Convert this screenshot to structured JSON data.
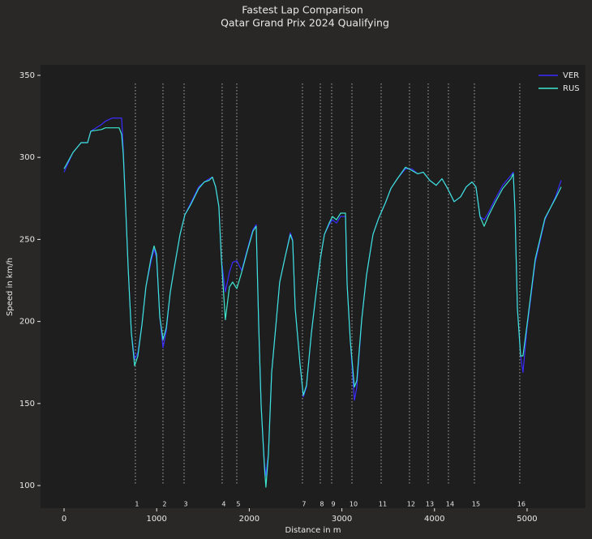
{
  "chart_data": {
    "type": "line",
    "title": "Fastest Lap Comparison",
    "subtitle": "Qatar Grand Prix 2024 Qualifying",
    "xlabel": "Distance in m",
    "ylabel": "Speed in km/h",
    "x": [
      0,
      96,
      184,
      254,
      289,
      403,
      447,
      522,
      595,
      622,
      639,
      666,
      692,
      727,
      762,
      797,
      841,
      884,
      937,
      972,
      998,
      1033,
      1068,
      1103,
      1147,
      1191,
      1252,
      1305,
      1366,
      1454,
      1515,
      1567,
      1602,
      1637,
      1672,
      1699,
      1742,
      1786,
      1821,
      1865,
      1918,
      1979,
      2040,
      2075,
      2102,
      2128,
      2163,
      2180,
      2207,
      2242,
      2285,
      2329,
      2390,
      2443,
      2469,
      2496,
      2548,
      2583,
      2618,
      2671,
      2723,
      2767,
      2811,
      2863,
      2898,
      2942,
      2986,
      3039,
      3056,
      3091,
      3135,
      3161,
      3214,
      3266,
      3336,
      3398,
      3468,
      3529,
      3599,
      3687,
      3757,
      3818,
      3879,
      3949,
      4019,
      4081,
      4142,
      4212,
      4282,
      4343,
      4405,
      4448,
      4492,
      4536,
      4580,
      4650,
      4737,
      4825,
      4851,
      4869,
      4895,
      4930,
      4956,
      5000,
      5088,
      5193,
      5307,
      5368
    ],
    "series": [
      {
        "name": "VER",
        "color": "#3a2cff",
        "values": [
          291,
          303,
          309,
          309,
          316,
          320,
          322,
          324,
          324,
          324,
          305,
          268,
          233,
          193,
          177,
          181,
          198,
          221,
          236,
          244,
          239,
          203,
          184,
          194,
          218,
          233,
          253,
          265,
          272,
          282,
          285,
          287,
          288,
          282,
          270,
          238,
          218,
          230,
          236,
          237,
          231,
          244,
          256,
          259,
          198,
          149,
          114,
          106,
          120,
          169,
          196,
          224,
          240,
          254,
          250,
          208,
          174,
          154,
          160,
          193,
          218,
          238,
          253,
          259,
          262,
          260,
          264,
          264,
          223,
          188,
          152,
          160,
          201,
          228,
          253,
          263,
          272,
          281,
          287,
          293,
          293,
          290,
          291,
          286,
          283,
          287,
          281,
          273,
          276,
          282,
          285,
          282,
          264,
          262,
          266,
          274,
          283,
          289,
          291,
          268,
          208,
          179,
          169,
          196,
          236,
          262,
          276,
          286
        ]
      },
      {
        "name": "RUS",
        "color": "#3ee6d0",
        "values": [
          293,
          303,
          309,
          309,
          316,
          317,
          318,
          318,
          318,
          314,
          302,
          268,
          233,
          193,
          173,
          179,
          198,
          221,
          238,
          246,
          241,
          203,
          189,
          196,
          218,
          233,
          253,
          265,
          271,
          281,
          285,
          286,
          288,
          282,
          270,
          238,
          201,
          221,
          224,
          220,
          230,
          243,
          255,
          258,
          198,
          149,
          112,
          99,
          119,
          169,
          196,
          224,
          240,
          253,
          249,
          208,
          174,
          155,
          161,
          193,
          218,
          238,
          253,
          260,
          264,
          262,
          266,
          266,
          223,
          188,
          160,
          164,
          201,
          228,
          253,
          263,
          272,
          281,
          287,
          294,
          292,
          290,
          291,
          286,
          283,
          287,
          281,
          273,
          276,
          282,
          285,
          282,
          264,
          258,
          264,
          272,
          281,
          287,
          290,
          268,
          208,
          179,
          179,
          198,
          238,
          263,
          275,
          282
        ]
      }
    ],
    "corners": {
      "distances": [
        770,
        1068,
        1296,
        1707,
        1865,
        2574,
        2767,
        2890,
        3109,
        3424,
        3730,
        3932,
        4151,
        4431,
        4921
      ],
      "labels": [
        "1",
        "2",
        "3",
        "4",
        "5",
        "7",
        "8",
        "9",
        "10",
        "11",
        "12",
        "13",
        "14",
        "15",
        "16"
      ]
    },
    "xlim": [
      -254,
      5631
    ],
    "ylim": [
      86.2,
      356.4
    ],
    "xticks": [
      0,
      1000,
      2000,
      3000,
      4000,
      5000
    ],
    "yticks": [
      100,
      150,
      200,
      250,
      300,
      350
    ],
    "grid": false,
    "legend": "upper right"
  }
}
